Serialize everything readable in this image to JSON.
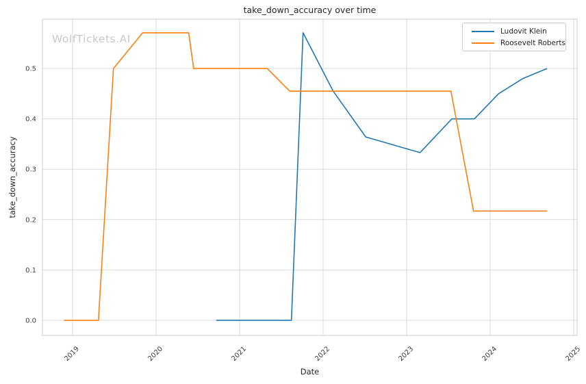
{
  "chart_data": {
    "type": "line",
    "title": "take_down_accuracy over time",
    "xlabel": "Date",
    "ylabel": "take_down_accuracy",
    "watermark": "WolfTickets.AI",
    "grid": true,
    "legend_position": "upper right",
    "xlim": [
      2018.64,
      2025.04
    ],
    "ylim": [
      -0.03,
      0.598
    ],
    "x_ticks": [
      2019,
      2020,
      2021,
      2022,
      2023,
      2024,
      2025
    ],
    "x_tick_labels": [
      "2019",
      "2020",
      "2021",
      "2022",
      "2023",
      "2024",
      "2025"
    ],
    "y_ticks": [
      0.0,
      0.1,
      0.2,
      0.3,
      0.4,
      0.5
    ],
    "y_tick_labels": [
      "0.0",
      "0.1",
      "0.2",
      "0.3",
      "0.4",
      "0.5"
    ],
    "series": [
      {
        "name": "Ludovit Klein",
        "color": "#1f77b4",
        "x": [
          2020.72,
          2021.62,
          2021.76,
          2022.12,
          2022.51,
          2023.16,
          2023.54,
          2023.81,
          2024.1,
          2024.39,
          2024.68
        ],
        "y": [
          0.0,
          0.0,
          0.571,
          0.455,
          0.364,
          0.333,
          0.4,
          0.4,
          0.45,
          0.48,
          0.5
        ]
      },
      {
        "name": "Roosevelt Roberts",
        "color": "#ff7f0e",
        "x": [
          2018.9,
          2019.31,
          2019.49,
          2019.84,
          2020.39,
          2020.45,
          2021.33,
          2021.6,
          2023.53,
          2023.8,
          2024.68
        ],
        "y": [
          0.0,
          0.0,
          0.5,
          0.571,
          0.571,
          0.5,
          0.5,
          0.455,
          0.455,
          0.217,
          0.217
        ]
      }
    ]
  },
  "colors": {
    "grid": "#d9d9d9",
    "spine": "#cccccc",
    "tick_text": "#3d3d3d",
    "text": "#262626",
    "watermark": "#c9c9c9",
    "background": "#ffffff"
  }
}
